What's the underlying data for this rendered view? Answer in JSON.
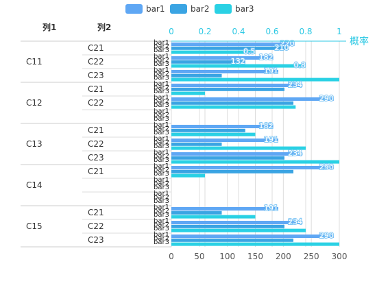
{
  "legend": [
    {
      "label": "bar1",
      "color": "#5fa7f4"
    },
    {
      "label": "bar2",
      "color": "#3aa4e3"
    },
    {
      "label": "bar3",
      "color": "#2ad1e4"
    }
  ],
  "table_headers": {
    "col1": "列1",
    "col2": "列2"
  },
  "chart_data": {
    "type": "bar",
    "orientation": "horizontal",
    "series_names": [
      "bar1",
      "bar2",
      "bar3"
    ],
    "rows": [
      {
        "col1": "C11",
        "col2": "C21",
        "values": [
          220,
          210,
          0.5
        ],
        "labels": [
          "220",
          "210",
          "0.5"
        ]
      },
      {
        "col1": "",
        "col2": "C22",
        "values": [
          182,
          132,
          0.8
        ],
        "labels": [
          "182",
          "132",
          "0.8"
        ]
      },
      {
        "col1": "",
        "col2": "C23",
        "values": [
          191,
          90,
          300
        ],
        "labels": [
          "191",
          "",
          ""
        ]
      },
      {
        "col1": "C12",
        "col2": "C21",
        "values": [
          234,
          202,
          60
        ],
        "labels": [
          "234",
          "",
          ""
        ]
      },
      {
        "col1": "",
        "col2": "C22",
        "values": [
          290,
          218,
          222
        ],
        "labels": [
          "290",
          "",
          ""
        ]
      },
      {
        "col1": "",
        "col2": "",
        "values": [
          0,
          0,
          0
        ],
        "labels": [
          "",
          "",
          ""
        ]
      },
      {
        "col1": "C13",
        "col2": "C21",
        "values": [
          182,
          132,
          150
        ],
        "labels": [
          "182",
          "",
          ""
        ]
      },
      {
        "col1": "",
        "col2": "C22",
        "values": [
          191,
          90,
          240
        ],
        "labels": [
          "191",
          "",
          ""
        ]
      },
      {
        "col1": "",
        "col2": "C23",
        "values": [
          234,
          202,
          300
        ],
        "labels": [
          "234",
          "",
          ""
        ]
      },
      {
        "col1": "C14",
        "col2": "C21",
        "values": [
          290,
          218,
          60
        ],
        "labels": [
          "290",
          "",
          ""
        ]
      },
      {
        "col1": "",
        "col2": "",
        "values": [
          0,
          0,
          0
        ],
        "labels": [
          "",
          "",
          ""
        ]
      },
      {
        "col1": "",
        "col2": "",
        "values": [
          0,
          0,
          0
        ],
        "labels": [
          "",
          "",
          ""
        ]
      },
      {
        "col1": "C15",
        "col2": "C21",
        "values": [
          191,
          90,
          150
        ],
        "labels": [
          "191",
          "",
          ""
        ]
      },
      {
        "col1": "",
        "col2": "C22",
        "values": [
          234,
          202,
          240
        ],
        "labels": [
          "234",
          "",
          ""
        ]
      },
      {
        "col1": "",
        "col2": "C23",
        "values": [
          290,
          218,
          300
        ],
        "labels": [
          "290",
          "",
          ""
        ]
      }
    ],
    "bottom_axis": {
      "range": [
        0,
        300
      ],
      "ticks": [
        "0",
        "50",
        "100",
        "150",
        "200",
        "250",
        "300"
      ]
    },
    "top_axis": {
      "title": "概率",
      "range": [
        0,
        1
      ],
      "ticks": [
        "0",
        "0.2",
        "0.4",
        "0.6",
        "0.8",
        "1"
      ]
    },
    "grid": true
  }
}
